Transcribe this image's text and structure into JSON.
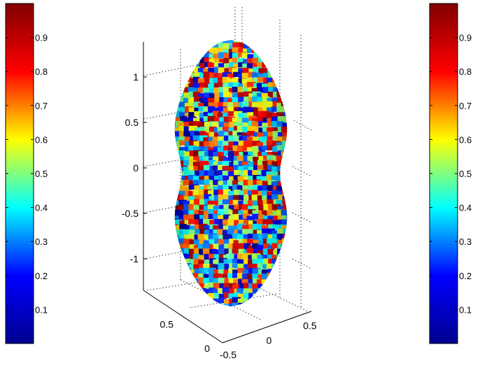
{
  "chart_data": {
    "type": "heatmap",
    "title": "",
    "colormap": "jet",
    "colormap_stops": [
      "#00008f",
      "#0000ff",
      "#00ffff",
      "#ffff00",
      "#ff0000",
      "#800000"
    ],
    "grid": true,
    "axes": {
      "x": {
        "ticks": [
          -0.5,
          0,
          0.5
        ],
        "tick_labels": [
          "-0.5",
          "0",
          "0.5"
        ]
      },
      "y": {
        "ticks": [
          -0.5,
          0,
          0.5
        ],
        "tick_labels": [
          "-0.5",
          "0",
          "0.5"
        ]
      },
      "z": {
        "ticks": [
          -1,
          -0.5,
          0,
          0.5,
          1
        ],
        "tick_labels": [
          "-1",
          "-0.5",
          "0",
          "0.5",
          "1"
        ]
      }
    },
    "colorbars": [
      {
        "position": "left",
        "ticks": [
          0.1,
          0.2,
          0.3,
          0.4,
          0.5,
          0.6,
          0.7,
          0.8,
          0.9
        ],
        "tick_labels": [
          "0.1",
          "0.2",
          "0.3",
          "0.4",
          "0.5",
          "0.6",
          "0.7",
          "0.8",
          "0.9"
        ],
        "range": [
          0,
          1
        ]
      },
      {
        "position": "right",
        "ticks": [
          0.1,
          0.2,
          0.3,
          0.4,
          0.5,
          0.6,
          0.7,
          0.8,
          0.9
        ],
        "tick_labels": [
          "0.1",
          "0.2",
          "0.3",
          "0.4",
          "0.5",
          "0.6",
          "0.7",
          "0.8",
          "0.9"
        ],
        "range": [
          0,
          1
        ]
      }
    ],
    "surface": {
      "shape": "peanut",
      "color_range": [
        0,
        1
      ],
      "pattern": "random noise texture"
    }
  }
}
